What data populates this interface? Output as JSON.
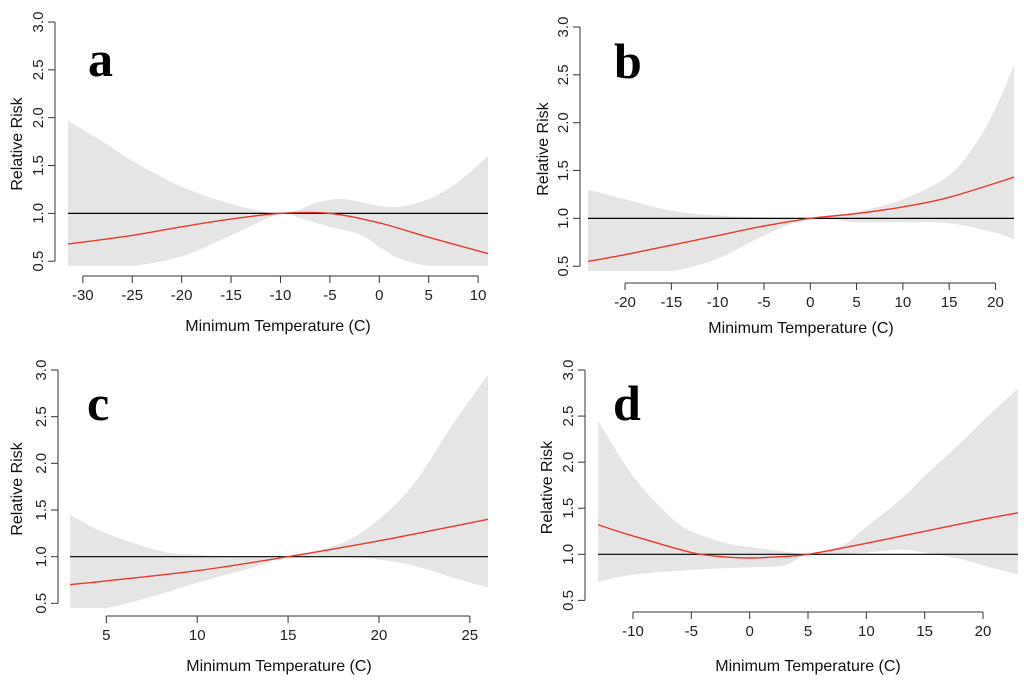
{
  "colors": {
    "band": "#e5e5e5",
    "fit": "#e8382b",
    "reference": "#000000",
    "axis": "#333333"
  },
  "chart_data": [
    {
      "type": "line",
      "panel": "a",
      "xlabel": "Minimum Temperature (C)",
      "ylabel": "Relative Risk",
      "xlim": [
        -31.5,
        11
      ],
      "ylim": [
        0.45,
        3.0
      ],
      "xticks": [
        -30,
        -25,
        -20,
        -15,
        -10,
        -5,
        0,
        5,
        10
      ],
      "yticks": [
        0.5,
        1.0,
        1.5,
        2.0,
        2.5,
        3.0
      ],
      "reference_line": 1.0,
      "series": [
        {
          "role": "estimate",
          "x": [
            -31.5,
            -25,
            -20,
            -15,
            -10,
            -5,
            0,
            5,
            11
          ],
          "values": [
            0.68,
            0.77,
            0.86,
            0.94,
            1.0,
            1.0,
            0.9,
            0.75,
            0.58
          ]
        },
        {
          "role": "ci_upper",
          "x": [
            -31.5,
            -28,
            -25,
            -20,
            -15,
            -10,
            -6,
            -4,
            -2,
            0,
            2,
            5,
            8,
            11
          ],
          "values": [
            1.97,
            1.75,
            1.55,
            1.28,
            1.1,
            1.0,
            1.12,
            1.15,
            1.12,
            1.08,
            1.07,
            1.15,
            1.33,
            1.6
          ]
        },
        {
          "role": "ci_lower",
          "x": [
            -31.5,
            -28,
            -25,
            -20,
            -15,
            -10,
            -8,
            -5,
            -2,
            0,
            2,
            5,
            8,
            11
          ],
          "values": [
            0.45,
            0.45,
            0.45,
            0.55,
            0.77,
            1.0,
            0.95,
            0.86,
            0.78,
            0.65,
            0.53,
            0.45,
            0.45,
            0.45
          ]
        }
      ]
    },
    {
      "type": "line",
      "panel": "b",
      "xlabel": "Minimum Temperature (C)",
      "ylabel": "Relative Risk",
      "xlim": [
        -24,
        22
      ],
      "ylim": [
        0.45,
        3.0
      ],
      "xticks": [
        -20,
        -15,
        -10,
        -5,
        0,
        5,
        10,
        15,
        20
      ],
      "yticks": [
        0.5,
        1.0,
        1.5,
        2.0,
        2.5,
        3.0
      ],
      "reference_line": 1.0,
      "series": [
        {
          "role": "estimate",
          "x": [
            -24,
            -20,
            -15,
            -10,
            -5,
            0,
            5,
            10,
            15,
            22
          ],
          "values": [
            0.55,
            0.62,
            0.72,
            0.82,
            0.92,
            1.0,
            1.05,
            1.12,
            1.22,
            1.43
          ]
        },
        {
          "role": "ci_upper",
          "x": [
            -24,
            -20,
            -15,
            -10,
            -5,
            0,
            5,
            10,
            15,
            18,
            20,
            22
          ],
          "values": [
            1.3,
            1.2,
            1.08,
            1.03,
            1.01,
            1.0,
            1.07,
            1.2,
            1.45,
            1.8,
            2.15,
            2.6
          ]
        },
        {
          "role": "ci_lower",
          "x": [
            -24,
            -20,
            -15,
            -10,
            -5,
            0,
            5,
            10,
            15,
            20,
            22
          ],
          "values": [
            0.45,
            0.45,
            0.45,
            0.58,
            0.82,
            1.0,
            0.96,
            0.96,
            0.95,
            0.85,
            0.78
          ]
        }
      ]
    },
    {
      "type": "line",
      "panel": "c",
      "xlabel": "Minimum Temperature (C)",
      "ylabel": "Relative Risk",
      "xlim": [
        3,
        26
      ],
      "ylim": [
        0.45,
        3.0
      ],
      "xticks": [
        5,
        10,
        15,
        20,
        25
      ],
      "yticks": [
        0.5,
        1.0,
        1.5,
        2.0,
        2.5,
        3.0
      ],
      "reference_line": 1.0,
      "series": [
        {
          "role": "estimate",
          "x": [
            3,
            5,
            10,
            15,
            20,
            26
          ],
          "values": [
            0.7,
            0.74,
            0.85,
            1.0,
            1.17,
            1.4
          ]
        },
        {
          "role": "ci_upper",
          "x": [
            3,
            5,
            8,
            10,
            13,
            15,
            18,
            20,
            22,
            24,
            26
          ],
          "values": [
            1.45,
            1.25,
            1.06,
            1.02,
            1.0,
            1.0,
            1.15,
            1.4,
            1.8,
            2.4,
            2.95
          ]
        },
        {
          "role": "ci_lower",
          "x": [
            3,
            5,
            8,
            10,
            13,
            15,
            18,
            20,
            22,
            24,
            26
          ],
          "values": [
            0.4,
            0.4,
            0.6,
            0.72,
            0.88,
            1.0,
            1.0,
            0.97,
            0.9,
            0.78,
            0.67
          ]
        }
      ]
    },
    {
      "type": "line",
      "panel": "d",
      "xlabel": "Minimum Temperature (C)",
      "ylabel": "Relative Risk",
      "xlim": [
        -13,
        23
      ],
      "ylim": [
        0.45,
        3.0
      ],
      "xticks": [
        -10,
        -5,
        0,
        5,
        10,
        15,
        20
      ],
      "yticks": [
        0.5,
        1.0,
        1.5,
        2.0,
        2.5,
        3.0
      ],
      "reference_line": 1.0,
      "series": [
        {
          "role": "estimate",
          "x": [
            -13,
            -10,
            -5,
            -2,
            0,
            2,
            5,
            10,
            15,
            20,
            23
          ],
          "values": [
            1.32,
            1.2,
            1.02,
            0.97,
            0.96,
            0.97,
            1.0,
            1.12,
            1.25,
            1.38,
            1.45
          ]
        },
        {
          "role": "ci_upper",
          "x": [
            -13,
            -10,
            -7,
            -5,
            -2,
            0,
            3,
            5,
            8,
            10,
            13,
            15,
            18,
            20,
            23
          ],
          "values": [
            2.45,
            1.85,
            1.43,
            1.25,
            1.12,
            1.08,
            1.03,
            1.0,
            1.1,
            1.3,
            1.6,
            1.85,
            2.2,
            2.45,
            2.8
          ]
        },
        {
          "role": "ci_lower",
          "x": [
            -13,
            -10,
            -5,
            -2,
            0,
            3,
            5,
            8,
            10,
            13,
            15,
            18,
            20,
            23
          ],
          "values": [
            0.7,
            0.78,
            0.83,
            0.85,
            0.86,
            0.88,
            1.0,
            1.0,
            1.02,
            1.05,
            1.02,
            0.95,
            0.88,
            0.78
          ]
        }
      ]
    }
  ]
}
